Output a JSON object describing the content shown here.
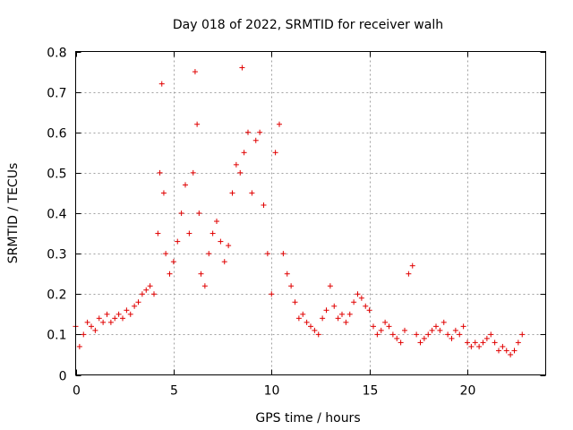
{
  "chart_data": {
    "type": "scatter",
    "title": "Day 018 of 2022, SRMTID for receiver walh",
    "xlabel": "GPS time / hours",
    "ylabel": "SRMTID / TECUs",
    "xlim": [
      0,
      24
    ],
    "ylim": [
      0,
      0.8
    ],
    "xticks": [
      0,
      5,
      10,
      15,
      20
    ],
    "xtick_labels": [
      "0",
      "5",
      "10",
      "15",
      "20"
    ],
    "yticks": [
      0,
      0.1,
      0.2,
      0.3,
      0.4,
      0.5,
      0.6,
      0.7,
      0.8
    ],
    "ytick_labels": [
      "0",
      "0.1",
      "0.2",
      "0.3",
      "0.4",
      "0.5",
      "0.6",
      "0.7",
      "0.8"
    ],
    "grid": true,
    "marker": "+",
    "color": "#e00000",
    "series": [
      {
        "name": "SRMTID",
        "x": [
          0.0,
          0.2,
          0.4,
          0.6,
          0.8,
          1.0,
          1.2,
          1.4,
          1.6,
          1.8,
          2.0,
          2.2,
          2.4,
          2.6,
          2.8,
          3.0,
          3.2,
          3.4,
          3.6,
          3.8,
          4.0,
          4.2,
          4.3,
          4.4,
          4.5,
          4.6,
          4.8,
          5.0,
          5.2,
          5.4,
          5.6,
          5.8,
          6.0,
          6.1,
          6.2,
          6.3,
          6.4,
          6.6,
          6.8,
          7.0,
          7.2,
          7.4,
          7.6,
          7.8,
          8.0,
          8.2,
          8.4,
          8.5,
          8.6,
          8.8,
          9.0,
          9.2,
          9.4,
          9.6,
          9.8,
          10.0,
          10.2,
          10.4,
          10.6,
          10.8,
          11.0,
          11.2,
          11.4,
          11.6,
          11.8,
          12.0,
          12.2,
          12.4,
          12.6,
          12.8,
          13.0,
          13.2,
          13.4,
          13.6,
          13.8,
          14.0,
          14.2,
          14.4,
          14.6,
          14.8,
          15.0,
          15.2,
          15.4,
          15.6,
          15.8,
          16.0,
          16.2,
          16.4,
          16.6,
          16.8,
          17.0,
          17.2,
          17.4,
          17.6,
          17.8,
          18.0,
          18.2,
          18.4,
          18.6,
          18.8,
          19.0,
          19.2,
          19.4,
          19.6,
          19.8,
          20.0,
          20.2,
          20.4,
          20.6,
          20.8,
          21.0,
          21.2,
          21.4,
          21.6,
          21.8,
          22.0,
          22.2,
          22.4,
          22.6,
          22.8
        ],
        "y": [
          0.12,
          0.07,
          0.1,
          0.13,
          0.12,
          0.11,
          0.14,
          0.13,
          0.15,
          0.13,
          0.14,
          0.15,
          0.14,
          0.16,
          0.15,
          0.17,
          0.18,
          0.2,
          0.21,
          0.22,
          0.2,
          0.35,
          0.5,
          0.72,
          0.45,
          0.3,
          0.25,
          0.28,
          0.33,
          0.4,
          0.47,
          0.35,
          0.5,
          0.75,
          0.62,
          0.4,
          0.25,
          0.22,
          0.3,
          0.35,
          0.38,
          0.33,
          0.28,
          0.32,
          0.45,
          0.52,
          0.5,
          0.76,
          0.55,
          0.6,
          0.45,
          0.58,
          0.6,
          0.42,
          0.3,
          0.2,
          0.55,
          0.62,
          0.3,
          0.25,
          0.22,
          0.18,
          0.14,
          0.15,
          0.13,
          0.12,
          0.11,
          0.1,
          0.14,
          0.16,
          0.22,
          0.17,
          0.14,
          0.15,
          0.13,
          0.15,
          0.18,
          0.2,
          0.19,
          0.17,
          0.16,
          0.12,
          0.1,
          0.11,
          0.13,
          0.12,
          0.1,
          0.09,
          0.08,
          0.11,
          0.25,
          0.27,
          0.1,
          0.08,
          0.09,
          0.1,
          0.11,
          0.12,
          0.11,
          0.13,
          0.1,
          0.09,
          0.11,
          0.1,
          0.12,
          0.08,
          0.07,
          0.08,
          0.07,
          0.08,
          0.09,
          0.1,
          0.08,
          0.06,
          0.07,
          0.06,
          0.05,
          0.06,
          0.08,
          0.1
        ]
      }
    ]
  }
}
